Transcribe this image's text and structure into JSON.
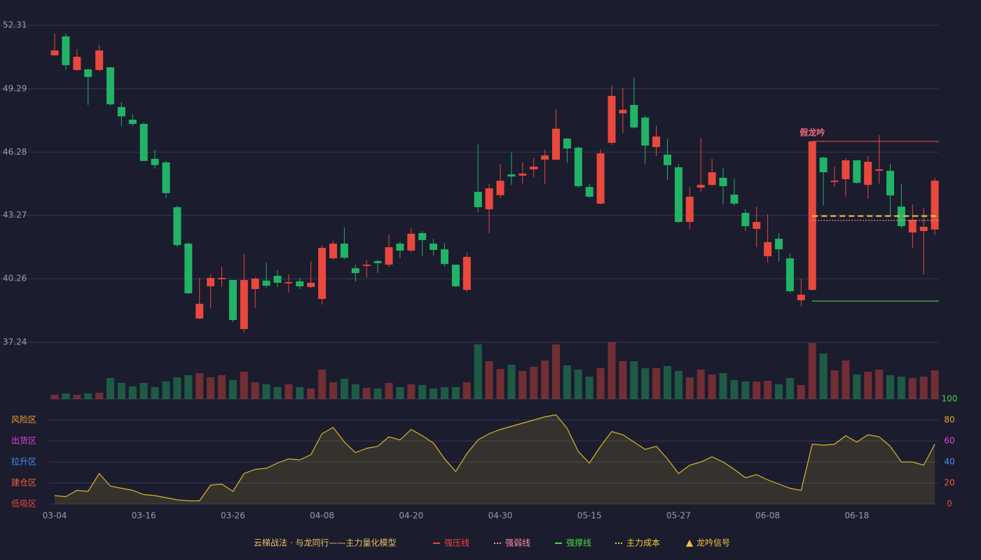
{
  "chart_data": {
    "type": "candlestick",
    "legend_title": "云梯战法 · 与龙同行——主力量化模型",
    "categories": [
      "03-04",
      null,
      null,
      null,
      null,
      null,
      null,
      null,
      "03-16",
      null,
      null,
      null,
      null,
      null,
      null,
      null,
      "03-26",
      null,
      null,
      null,
      null,
      null,
      null,
      null,
      "04-08",
      null,
      null,
      null,
      null,
      null,
      null,
      null,
      "04-20",
      null,
      null,
      null,
      null,
      null,
      null,
      null,
      "04-30",
      null,
      null,
      null,
      null,
      null,
      null,
      null,
      "05-15",
      null,
      null,
      null,
      null,
      null,
      null,
      null,
      "05-27",
      null,
      null,
      null,
      null,
      null,
      null,
      null,
      "06-08",
      null,
      null,
      null,
      null,
      null,
      null,
      null,
      "06-18",
      null,
      null,
      null,
      null,
      null,
      null,
      null
    ],
    "open": [
      50.88,
      51.78,
      50.18,
      50.21,
      50.18,
      50.31,
      48.42,
      47.82,
      47.62,
      45.96,
      45.79,
      43.66,
      41.93,
      38.37,
      39.9,
      40.24,
      40.2,
      37.87,
      39.77,
      40.17,
      40.4,
      40.04,
      40.14,
      39.87,
      39.3,
      41.23,
      41.93,
      40.76,
      40.87,
      41.1,
      40.93,
      41.93,
      41.6,
      42.43,
      41.93,
      41.66,
      40.93,
      39.73,
      44.39,
      43.56,
      44.23,
      45.22,
      45.16,
      45.46,
      45.92,
      45.92,
      46.92,
      46.49,
      44.62,
      43.83,
      46.72,
      48.12,
      48.52,
      47.92,
      46.52,
      46.16,
      45.56,
      42.96,
      44.59,
      44.72,
      45.06,
      44.26,
      43.39,
      42.63,
      41.33,
      42.16,
      41.23,
      39.24,
      39.73,
      46.02,
      44.86,
      44.99,
      45.89,
      44.72,
      45.39,
      45.39,
      43.69,
      42.46,
      42.53,
      42.6
    ],
    "high": [
      51.91,
      51.91,
      51.18,
      50.24,
      51.38,
      50.31,
      48.65,
      48.08,
      47.69,
      46.39,
      45.86,
      43.73,
      41.99,
      40.3,
      40.47,
      40.83,
      40.2,
      41.43,
      40.33,
      41.03,
      40.67,
      40.47,
      40.3,
      41.1,
      41.86,
      42.06,
      42.7,
      40.93,
      41.13,
      41.16,
      42.36,
      42.03,
      42.66,
      42.53,
      42.16,
      41.96,
      40.93,
      41.5,
      46.65,
      44.76,
      45.72,
      46.26,
      45.79,
      45.99,
      46.39,
      48.32,
      46.95,
      46.55,
      44.76,
      46.42,
      49.45,
      49.32,
      49.81,
      48.02,
      47.52,
      46.92,
      45.72,
      44.62,
      46.95,
      45.96,
      45.52,
      45.02,
      43.56,
      43.69,
      43.33,
      42.43,
      41.46,
      40.27,
      46.79,
      46.06,
      45.59,
      45.99,
      45.92,
      46.09,
      47.09,
      45.72,
      44.76,
      43.79,
      43.63,
      45.06
    ],
    "low": [
      50.85,
      50.18,
      50.15,
      48.52,
      50.11,
      48.48,
      47.52,
      47.52,
      45.86,
      45.49,
      44.09,
      41.76,
      39.53,
      38.34,
      38.87,
      39.87,
      38.2,
      37.7,
      38.87,
      39.83,
      39.87,
      39.6,
      39.77,
      39.8,
      39.03,
      41.16,
      41.2,
      40.13,
      40.33,
      40.53,
      40.83,
      41.23,
      41.53,
      41.33,
      41.36,
      40.86,
      39.87,
      39.63,
      43.43,
      42.43,
      44.09,
      44.72,
      44.79,
      45.09,
      44.76,
      45.89,
      45.76,
      44.59,
      44.09,
      43.79,
      46.62,
      47.19,
      47.39,
      45.69,
      46.09,
      44.96,
      42.9,
      42.63,
      44.39,
      44.66,
      43.79,
      43.73,
      42.53,
      41.76,
      41.03,
      41.1,
      39.6,
      38.94,
      39.7,
      43.73,
      44.62,
      44.16,
      44.79,
      44.06,
      44.79,
      43.23,
      42.66,
      41.7,
      40.47,
      42.33
    ],
    "close": [
      51.11,
      50.41,
      50.81,
      49.85,
      51.11,
      48.55,
      47.98,
      47.62,
      45.86,
      45.66,
      44.33,
      41.86,
      39.57,
      39.07,
      40.3,
      40.3,
      38.3,
      40.2,
      40.27,
      39.93,
      40.07,
      40.1,
      39.9,
      40.07,
      41.73,
      41.93,
      41.26,
      40.53,
      40.93,
      41.0,
      41.76,
      41.6,
      42.4,
      42.1,
      41.63,
      40.96,
      39.9,
      41.3,
      43.66,
      44.56,
      44.92,
      45.12,
      45.26,
      45.59,
      46.12,
      47.39,
      46.45,
      44.66,
      44.16,
      46.22,
      48.95,
      48.29,
      47.45,
      46.59,
      47.02,
      45.66,
      42.96,
      44.16,
      44.72,
      45.32,
      44.66,
      43.83,
      42.76,
      42.96,
      42.0,
      41.66,
      39.67,
      39.5,
      46.79,
      45.32,
      44.92,
      45.89,
      44.82,
      45.82,
      45.46,
      44.22,
      42.76,
      43.06,
      42.73,
      44.92
    ],
    "volume": [
      6,
      8,
      6,
      8,
      9,
      30,
      23,
      18,
      23,
      17,
      25,
      31,
      34,
      37,
      31,
      34,
      27,
      39,
      24,
      21,
      17,
      21,
      17,
      15,
      42,
      24,
      29,
      21,
      16,
      15,
      23,
      17,
      21,
      20,
      15,
      17,
      17,
      24,
      78,
      54,
      43,
      49,
      40,
      46,
      55,
      78,
      48,
      42,
      32,
      44,
      81,
      54,
      54,
      44,
      44,
      47,
      40,
      31,
      42,
      35,
      37,
      27,
      25,
      25,
      26,
      21,
      30,
      20,
      80,
      65,
      41,
      55,
      35,
      39,
      42,
      34,
      32,
      30,
      32,
      41
    ],
    "indicator": [
      8,
      7,
      13,
      12,
      29,
      17,
      15,
      13,
      9,
      8,
      6,
      4,
      3,
      3,
      18,
      19,
      12,
      29,
      33,
      34,
      39,
      43,
      42,
      47,
      67,
      73,
      59,
      49,
      53,
      55,
      64,
      61,
      71,
      65,
      58,
      43,
      31,
      48,
      61,
      67,
      71,
      74,
      77,
      80,
      83,
      85,
      72,
      50,
      39,
      55,
      69,
      66,
      59,
      52,
      55,
      43,
      29,
      37,
      40,
      45,
      40,
      33,
      25,
      28,
      23,
      19,
      15,
      13,
      57,
      56,
      57,
      65,
      59,
      66,
      64,
      55,
      40,
      40,
      37,
      57
    ],
    "up_color": "#e9483d",
    "down_color": "#21b366",
    "ylim": [
      37.24,
      52.31
    ],
    "yticks": [
      37.24,
      40.26,
      43.27,
      46.28,
      49.29,
      52.31
    ],
    "grid": true,
    "levels": [
      {
        "name": "强压线",
        "value": 46.79,
        "color": "#e9483d",
        "style": "solid"
      },
      {
        "name": "强弱线",
        "value": 43.03,
        "color": "#ff8fa8",
        "style": "dotted"
      },
      {
        "name": "强撑线",
        "value": 39.2,
        "color": "#4bd44b",
        "style": "solid"
      },
      {
        "name": "主力成本",
        "value": 43.24,
        "color": "#f5d033",
        "style": "dashed"
      }
    ],
    "signal": {
      "name": "龙吟信号",
      "color": "#f5c342",
      "text": "假龙吟",
      "text_color": "#f06a7a",
      "index": 68
    },
    "indicator_ylim": [
      0,
      100
    ],
    "indicator_yticks": [
      0,
      20,
      40,
      60,
      80,
      100
    ],
    "indicator_tick_colors": [
      "#e9483d",
      "#f0603a",
      "#4d8cf5",
      "#e040e0",
      "#f0a030",
      "#3ad44a"
    ],
    "zones": [
      {
        "value": 80,
        "label": "风险区",
        "color": "#f0a030"
      },
      {
        "value": 60,
        "label": "出货区",
        "color": "#e040e0"
      },
      {
        "value": 40,
        "label": "拉升区",
        "color": "#4d8cf5"
      },
      {
        "value": 20,
        "label": "建仓区",
        "color": "#f0603a"
      },
      {
        "value": 0,
        "label": "低吸区",
        "color": "#e9483d"
      }
    ],
    "indicator_color": "#d8b62a"
  }
}
